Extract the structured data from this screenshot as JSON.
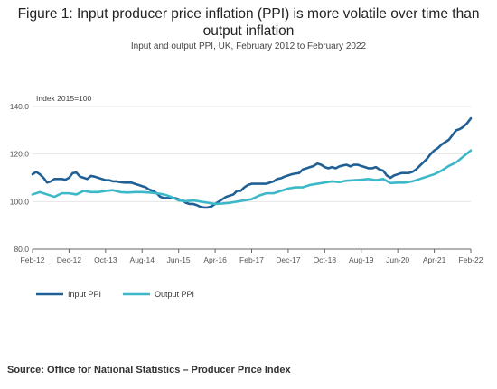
{
  "title": "Figure 1: Input producer price inflation (PPI) is more volatile over time than output inflation",
  "subtitle": "Input and output PPI, UK, February 2012 to February 2022",
  "source": "Source: Office for National Statistics – Producer Price Index",
  "colors": {
    "input": "#206095",
    "output": "#3db8c9",
    "axis": "#666666",
    "grid": "#e6e6e6"
  },
  "chart_data": {
    "type": "line",
    "ylabel": "Index 2015=100",
    "ylim": [
      80,
      140
    ],
    "yticks": [
      80.0,
      100.0,
      120.0,
      140.0
    ],
    "ytick_labels": [
      "80.0",
      "100.0",
      "120.0",
      "140.0"
    ],
    "xticks": [
      {
        "x": 0,
        "label": "Feb-12"
      },
      {
        "x": 10,
        "label": "Dec-12"
      },
      {
        "x": 20,
        "label": "Oct-13"
      },
      {
        "x": 30,
        "label": "Aug-14"
      },
      {
        "x": 40,
        "label": "Jun-15"
      },
      {
        "x": 50,
        "label": "Apr-16"
      },
      {
        "x": 60,
        "label": "Feb-17"
      },
      {
        "x": 70,
        "label": "Dec-17"
      },
      {
        "x": 80,
        "label": "Oct-18"
      },
      {
        "x": 90,
        "label": "Aug-19"
      },
      {
        "x": 100,
        "label": "Jun-20"
      },
      {
        "x": 110,
        "label": "Apr-21"
      },
      {
        "x": 120,
        "label": "Feb-22"
      }
    ],
    "x_unit": "months from Feb-12",
    "legend": "bottom-left",
    "grid": true,
    "series": [
      {
        "name": "Input PPI",
        "key": "input",
        "points": [
          [
            0,
            111.5
          ],
          [
            1,
            112.5
          ],
          [
            2,
            111.5
          ],
          [
            3,
            110
          ],
          [
            4,
            108
          ],
          [
            5,
            108.5
          ],
          [
            6,
            109.5
          ],
          [
            7,
            109.5
          ],
          [
            8,
            109.5
          ],
          [
            9,
            109.2
          ],
          [
            10,
            110
          ],
          [
            11,
            112
          ],
          [
            12,
            112.2
          ],
          [
            13,
            110.5
          ],
          [
            14,
            110
          ],
          [
            15,
            109.5
          ],
          [
            16,
            110.8
          ],
          [
            17,
            110.5
          ],
          [
            18,
            110
          ],
          [
            19,
            109.5
          ],
          [
            20,
            109
          ],
          [
            21,
            109
          ],
          [
            22,
            108.5
          ],
          [
            23,
            108.5
          ],
          [
            24,
            108.2
          ],
          [
            25,
            108
          ],
          [
            26,
            108
          ],
          [
            27,
            108
          ],
          [
            28,
            107.5
          ],
          [
            29,
            107
          ],
          [
            30,
            106.5
          ],
          [
            31,
            106
          ],
          [
            32,
            105
          ],
          [
            33,
            104.5
          ],
          [
            34,
            103.5
          ],
          [
            35,
            102
          ],
          [
            36,
            101.5
          ],
          [
            37,
            101.5
          ],
          [
            38,
            101.5
          ],
          [
            39,
            101.5
          ],
          [
            40,
            101
          ],
          [
            41,
            100.5
          ],
          [
            42,
            99.5
          ],
          [
            43,
            99
          ],
          [
            44,
            99
          ],
          [
            45,
            98.5
          ],
          [
            46,
            97.8
          ],
          [
            47,
            97.5
          ],
          [
            48,
            97.5
          ],
          [
            49,
            98
          ],
          [
            50,
            99
          ],
          [
            51,
            100
          ],
          [
            52,
            101
          ],
          [
            53,
            102
          ],
          [
            54,
            102.5
          ],
          [
            55,
            103
          ],
          [
            56,
            104.5
          ],
          [
            57,
            104.5
          ],
          [
            58,
            106
          ],
          [
            59,
            107
          ],
          [
            60,
            107.5
          ],
          [
            61,
            107.5
          ],
          [
            62,
            107.5
          ],
          [
            63,
            107.5
          ],
          [
            64,
            107.5
          ],
          [
            65,
            108
          ],
          [
            66,
            108.5
          ],
          [
            67,
            109.5
          ],
          [
            68,
            109.8
          ],
          [
            69,
            110.5
          ],
          [
            70,
            111
          ],
          [
            71,
            111.5
          ],
          [
            72,
            111.8
          ],
          [
            73,
            112
          ],
          [
            74,
            113.5
          ],
          [
            75,
            114
          ],
          [
            76,
            114.5
          ],
          [
            77,
            115
          ],
          [
            78,
            116
          ],
          [
            79,
            115.5
          ],
          [
            80,
            114.5
          ],
          [
            81,
            114
          ],
          [
            82,
            114.5
          ],
          [
            83,
            114
          ],
          [
            84,
            114.8
          ],
          [
            85,
            115.2
          ],
          [
            86,
            115.5
          ],
          [
            87,
            114.8
          ],
          [
            88,
            115.5
          ],
          [
            89,
            115.5
          ],
          [
            90,
            115
          ],
          [
            91,
            114.5
          ],
          [
            92,
            114
          ],
          [
            93,
            114
          ],
          [
            94,
            114.5
          ],
          [
            95,
            113.5
          ],
          [
            96,
            113
          ],
          [
            97,
            111
          ],
          [
            98,
            110
          ],
          [
            99,
            111
          ],
          [
            100,
            111.5
          ],
          [
            101,
            112
          ],
          [
            102,
            112
          ],
          [
            103,
            112
          ],
          [
            104,
            112.5
          ],
          [
            105,
            113.5
          ],
          [
            106,
            115
          ],
          [
            107,
            116.5
          ],
          [
            108,
            118
          ],
          [
            109,
            120
          ],
          [
            110,
            121.5
          ],
          [
            111,
            122.5
          ],
          [
            112,
            124
          ],
          [
            113,
            125
          ],
          [
            114,
            126
          ],
          [
            115,
            128
          ],
          [
            116,
            130
          ],
          [
            117,
            130.5
          ],
          [
            118,
            131.5
          ],
          [
            119,
            133
          ],
          [
            120,
            135
          ]
        ]
      },
      {
        "name": "Output PPI",
        "key": "output",
        "points": [
          [
            0,
            103
          ],
          [
            2,
            104
          ],
          [
            4,
            103
          ],
          [
            6,
            102
          ],
          [
            8,
            103.5
          ],
          [
            10,
            103.5
          ],
          [
            12,
            103
          ],
          [
            14,
            104.5
          ],
          [
            16,
            104
          ],
          [
            18,
            104
          ],
          [
            20,
            104.5
          ],
          [
            22,
            104.8
          ],
          [
            24,
            104
          ],
          [
            26,
            103.8
          ],
          [
            28,
            104
          ],
          [
            30,
            104
          ],
          [
            32,
            103.8
          ],
          [
            34,
            103.5
          ],
          [
            36,
            103
          ],
          [
            38,
            102
          ],
          [
            40,
            100.5
          ],
          [
            42,
            100.2
          ],
          [
            44,
            100.5
          ],
          [
            46,
            100
          ],
          [
            48,
            99.5
          ],
          [
            50,
            99
          ],
          [
            52,
            99.2
          ],
          [
            54,
            99.5
          ],
          [
            56,
            100
          ],
          [
            58,
            100.5
          ],
          [
            60,
            101
          ],
          [
            62,
            102.5
          ],
          [
            64,
            103.5
          ],
          [
            66,
            103.5
          ],
          [
            68,
            104.5
          ],
          [
            70,
            105.5
          ],
          [
            72,
            106
          ],
          [
            74,
            106
          ],
          [
            76,
            107
          ],
          [
            78,
            107.5
          ],
          [
            80,
            108
          ],
          [
            82,
            108.5
          ],
          [
            84,
            108.2
          ],
          [
            86,
            108.8
          ],
          [
            88,
            109
          ],
          [
            90,
            109.2
          ],
          [
            92,
            109.5
          ],
          [
            94,
            109
          ],
          [
            96,
            109.5
          ],
          [
            98,
            107.8
          ],
          [
            100,
            108
          ],
          [
            102,
            108
          ],
          [
            104,
            108.5
          ],
          [
            106,
            109.5
          ],
          [
            108,
            110.5
          ],
          [
            110,
            111.5
          ],
          [
            112,
            113
          ],
          [
            114,
            115
          ],
          [
            116,
            116.5
          ],
          [
            118,
            119
          ],
          [
            120,
            121.5
          ]
        ]
      }
    ]
  }
}
